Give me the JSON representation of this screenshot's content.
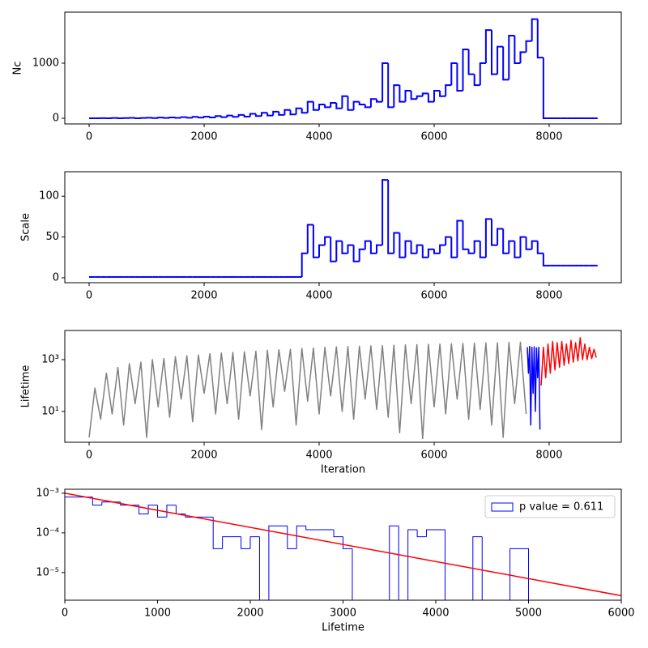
{
  "chart_data": [
    {
      "type": "line",
      "ylabel": "Nc",
      "drawstyle": "steps-post",
      "xlim": [
        -423,
        9254
      ],
      "xticks": [
        0,
        2000,
        4000,
        6000,
        8000
      ],
      "ylim": [
        -103,
        1926
      ],
      "yticks": [
        0,
        1000
      ],
      "series": [
        {
          "color": "#0000ff",
          "x": [
            0,
            100,
            200,
            300,
            400,
            500,
            600,
            700,
            800,
            900,
            1000,
            1100,
            1200,
            1300,
            1400,
            1500,
            1600,
            1700,
            1800,
            1900,
            2000,
            2100,
            2200,
            2300,
            2400,
            2500,
            2600,
            2700,
            2800,
            2900,
            3000,
            3100,
            3200,
            3300,
            3400,
            3500,
            3600,
            3700,
            3800,
            3900,
            4000,
            4100,
            4200,
            4300,
            4400,
            4500,
            4600,
            4700,
            4800,
            4900,
            5000,
            5100,
            5200,
            5300,
            5400,
            5500,
            5600,
            5700,
            5800,
            5900,
            6000,
            6100,
            6200,
            6300,
            6400,
            6500,
            6600,
            6700,
            6800,
            6900,
            7000,
            7100,
            7200,
            7300,
            7400,
            7500,
            7600,
            7700,
            7800,
            7900,
            8000,
            8100,
            8200,
            8300,
            8400,
            8500,
            8600,
            8700,
            8800
          ],
          "values": [
            0,
            0,
            2,
            0,
            5,
            0,
            3,
            8,
            0,
            5,
            10,
            4,
            12,
            6,
            15,
            8,
            20,
            10,
            25,
            12,
            30,
            15,
            40,
            20,
            50,
            25,
            60,
            30,
            80,
            40,
            100,
            50,
            120,
            60,
            150,
            70,
            180,
            100,
            300,
            150,
            250,
            200,
            280,
            180,
            400,
            150,
            300,
            250,
            200,
            350,
            300,
            1000,
            200,
            600,
            300,
            500,
            350,
            400,
            450,
            300,
            500,
            400,
            600,
            1000,
            500,
            1250,
            800,
            600,
            1000,
            1600,
            800,
            1300,
            700,
            1500,
            1000,
            1200,
            1400,
            1800,
            1100,
            0,
            0,
            0,
            0,
            0,
            0,
            0,
            0,
            0,
            0
          ]
        }
      ]
    },
    {
      "type": "line",
      "ylabel": "Scale",
      "drawstyle": "steps-post",
      "xlim": [
        -423,
        9254
      ],
      "xticks": [
        0,
        2000,
        4000,
        6000,
        8000
      ],
      "ylim": [
        -6,
        130
      ],
      "yticks": [
        0,
        50,
        100
      ],
      "series": [
        {
          "color": "#0000ff",
          "x": [
            0,
            100,
            200,
            300,
            400,
            500,
            600,
            700,
            800,
            900,
            1000,
            1100,
            1200,
            1300,
            1400,
            1500,
            1600,
            1700,
            1800,
            1900,
            2000,
            2100,
            2200,
            2300,
            2400,
            2500,
            2600,
            2700,
            2800,
            2900,
            3000,
            3100,
            3200,
            3300,
            3400,
            3500,
            3600,
            3700,
            3800,
            3900,
            4000,
            4100,
            4200,
            4300,
            4400,
            4500,
            4600,
            4700,
            4800,
            4900,
            5000,
            5100,
            5200,
            5300,
            5400,
            5500,
            5600,
            5700,
            5800,
            5900,
            6000,
            6100,
            6200,
            6300,
            6400,
            6500,
            6600,
            6700,
            6800,
            6900,
            7000,
            7100,
            7200,
            7300,
            7400,
            7500,
            7600,
            7700,
            7800,
            7900,
            8000,
            8100,
            8200,
            8300,
            8400,
            8500,
            8600,
            8700,
            8800
          ],
          "values": [
            1,
            1,
            1,
            1,
            1,
            1,
            1,
            1,
            1,
            1,
            1,
            1,
            1,
            1,
            1,
            1,
            1,
            1,
            1,
            1,
            1,
            1,
            1,
            1,
            1,
            1,
            1,
            1,
            1,
            1,
            1,
            1,
            1,
            1,
            1,
            1,
            1,
            30,
            65,
            25,
            40,
            50,
            20,
            45,
            30,
            40,
            20,
            35,
            45,
            30,
            40,
            120,
            30,
            55,
            25,
            45,
            30,
            40,
            25,
            35,
            30,
            40,
            50,
            25,
            70,
            35,
            30,
            45,
            25,
            72,
            40,
            60,
            30,
            45,
            25,
            50,
            35,
            45,
            30,
            15,
            15,
            15,
            15,
            15,
            15,
            15,
            15,
            15,
            15
          ]
        }
      ]
    },
    {
      "type": "line",
      "ylabel": "Lifetime",
      "xlabel": "Iteration",
      "log_y": true,
      "xlim": [
        -423,
        9254
      ],
      "xticks": [
        0,
        2000,
        4000,
        6000,
        8000
      ],
      "ylim": [
        0.65,
        13300
      ],
      "yticks": [
        {
          "value": 10,
          "label": "10¹"
        },
        {
          "value": 1000,
          "label": "10³"
        }
      ],
      "series": [
        {
          "color": "#808080",
          "x": [
            0,
            100,
            200,
            300,
            400,
            500,
            600,
            700,
            800,
            900,
            1000,
            1100,
            1200,
            1300,
            1400,
            1500,
            1600,
            1700,
            1800,
            1900,
            2000,
            2100,
            2200,
            2300,
            2400,
            2500,
            2600,
            2700,
            2800,
            2900,
            3000,
            3100,
            3200,
            3300,
            3400,
            3500,
            3600,
            3700,
            3800,
            3900,
            4000,
            4100,
            4200,
            4300,
            4400,
            4500,
            4600,
            4700,
            4800,
            4900,
            5000,
            5100,
            5200,
            5300,
            5400,
            5500,
            5600,
            5700,
            5800,
            5900,
            6000,
            6100,
            6200,
            6300,
            6400,
            6500,
            6600,
            6700,
            6800,
            6900,
            7000,
            7100,
            7200,
            7300,
            7400,
            7500,
            7600
          ],
          "values": [
            1,
            80,
            5,
            300,
            8,
            500,
            3,
            700,
            20,
            800,
            1,
            1000,
            15,
            1100,
            6,
            1300,
            30,
            1400,
            4,
            1500,
            50,
            1700,
            8,
            1800,
            20,
            1900,
            5,
            2000,
            40,
            2100,
            2,
            2300,
            15,
            2400,
            60,
            2500,
            3,
            2700,
            25,
            2800,
            8,
            3000,
            40,
            3100,
            10,
            3200,
            5,
            3300,
            30,
            3400,
            12,
            3500,
            6,
            3600,
            1.5,
            3700,
            20,
            3800,
            0.9,
            3900,
            15,
            4000,
            8,
            4100,
            30,
            4200,
            5,
            4300,
            12,
            4400,
            3,
            4500,
            1,
            4600,
            20,
            4700,
            8
          ]
        },
        {
          "color": "#0000ff",
          "x": [
            7620,
            7640,
            7660,
            7680,
            7700,
            7720,
            7740,
            7760,
            7780,
            7800,
            7820,
            7840
          ],
          "values": [
            3000,
            300,
            3200,
            3,
            3000,
            50,
            3100,
            10,
            2800,
            200,
            3000,
            2
          ]
        },
        {
          "color": "#ff0000",
          "x": [
            7860,
            7900,
            7940,
            7980,
            8020,
            8060,
            8100,
            8140,
            8180,
            8220,
            8260,
            8300,
            8340,
            8380,
            8420,
            8460,
            8500,
            8540,
            8580,
            8620,
            8660,
            8700,
            8740,
            8780,
            8820
          ],
          "values": [
            100,
            3000,
            200,
            4000,
            300,
            5000,
            400,
            4500,
            500,
            5000,
            600,
            4000,
            700,
            5500,
            800,
            4500,
            900,
            7000,
            1000,
            4000,
            1000,
            3000,
            1100,
            2500,
            1200
          ]
        }
      ]
    },
    {
      "type": "histogram",
      "xlabel": "Lifetime",
      "log_y": true,
      "legend": "upper right",
      "xlim": [
        0,
        6000
      ],
      "xticks": [
        0,
        1000,
        2000,
        3000,
        4000,
        5000,
        6000
      ],
      "ylim": [
        2e-06,
        0.00126
      ],
      "yticks": [
        {
          "value": 1e-05,
          "label": "10⁻⁵"
        },
        {
          "value": 0.0001,
          "label": "10⁻⁴"
        },
        {
          "value": 0.001,
          "label": "10⁻³"
        }
      ],
      "name": "p value = 0.611",
      "color": "#0000ff",
      "bins": [
        0,
        100,
        200,
        300,
        400,
        500,
        600,
        700,
        800,
        900,
        1000,
        1100,
        1200,
        1300,
        1400,
        1500,
        1600,
        1700,
        1800,
        1900,
        2000,
        2100,
        2200,
        2300,
        2400,
        2500,
        2600,
        2700,
        2800,
        2900,
        3000,
        3100,
        3200,
        3300,
        3400,
        3500,
        3600,
        3700,
        3800,
        3900,
        4000,
        4100,
        4200,
        4300,
        4400,
        4500,
        4600,
        4700,
        4800,
        4900,
        5000
      ],
      "counts": [
        0.0008,
        0.0008,
        0.0008,
        0.0005,
        0.0006,
        0.0006,
        0.0005,
        0.0005,
        0.0003,
        0.0005,
        0.00025,
        0.0005,
        0.0003,
        0.00025,
        0.00025,
        0.00025,
        4e-05,
        8e-05,
        8e-05,
        4e-05,
        8e-05,
        0,
        0.00015,
        0.00015,
        4e-05,
        0.00015,
        0.00012,
        0.00012,
        0.00012,
        8e-05,
        4e-05,
        0,
        0,
        0,
        0,
        0.00015,
        0,
        0.00012,
        8e-05,
        0.00012,
        0.00012,
        0,
        0,
        0,
        8e-05,
        0,
        0,
        0,
        4e-05,
        4e-05
      ],
      "fit": {
        "color": "#ff0000",
        "x": [
          0,
          6000
        ],
        "values": [
          0.001,
          2.6e-06
        ]
      }
    }
  ]
}
